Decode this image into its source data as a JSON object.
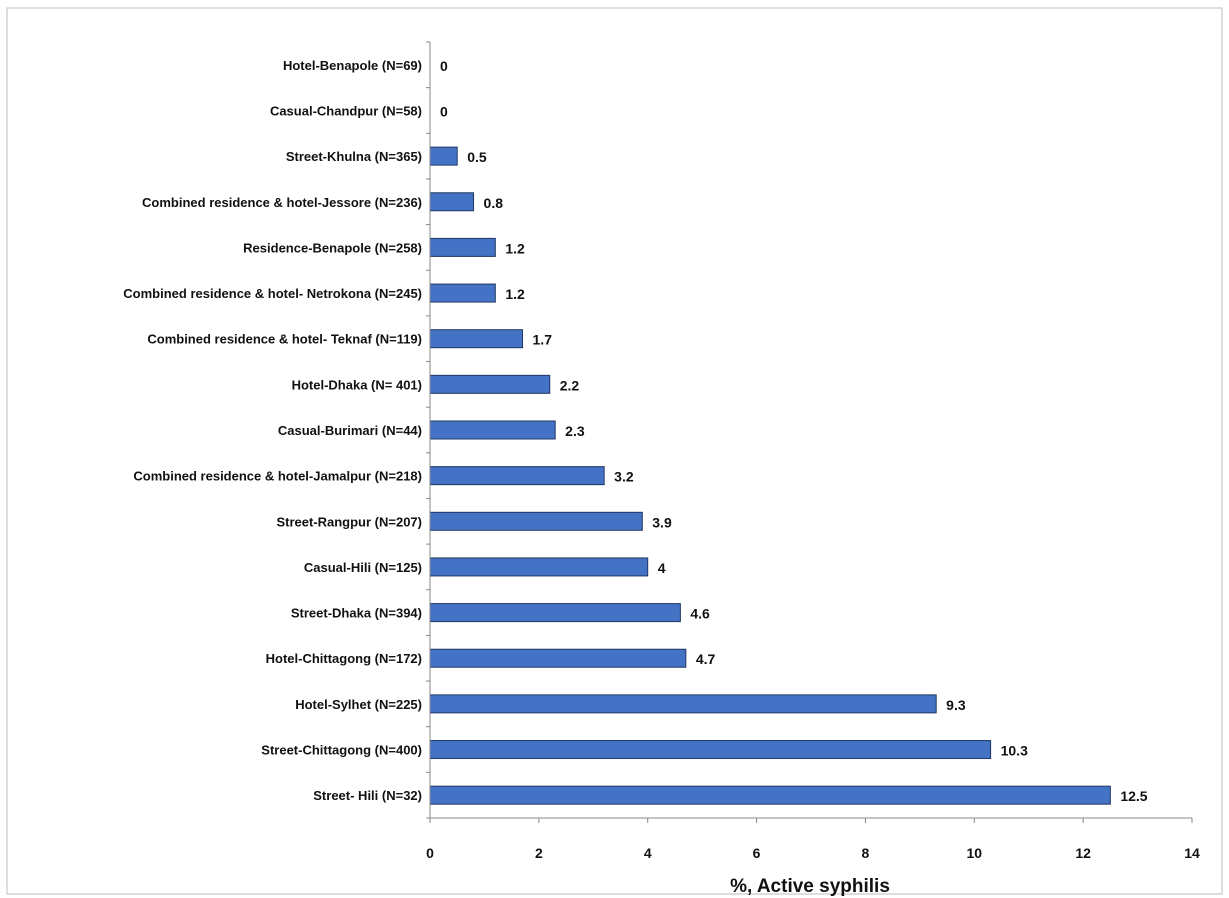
{
  "chart_data": {
    "type": "bar",
    "orientation": "horizontal",
    "xlabel": "%, Active syphilis",
    "xlim": [
      0,
      14
    ],
    "xticks": [
      0,
      2,
      4,
      6,
      8,
      10,
      12,
      14
    ],
    "grid": false,
    "legend": "none",
    "bar_color": "#4472C4",
    "bar_edge_color": "#1F3864",
    "categories": [
      "Hotel-Benapole (N=69)",
      "Casual-Chandpur (N=58)",
      "Street-Khulna (N=365)",
      "Combined residence & hotel-Jessore (N=236)",
      "Residence-Benapole (N=258)",
      "Combined residence & hotel- Netrokona (N=245)",
      "Combined residence & hotel- Teknaf (N=119)",
      "Hotel-Dhaka (N= 401)",
      "Casual-Burimari (N=44)",
      "Combined residence & hotel-Jamalpur (N=218)",
      "Street-Rangpur (N=207)",
      "Casual-Hili (N=125)",
      "Street-Dhaka (N=394)",
      "Hotel-Chittagong (N=172)",
      "Hotel-Sylhet (N=225)",
      "Street-Chittagong (N=400)",
      "Street- Hili (N=32)"
    ],
    "values": [
      0,
      0,
      0.5,
      0.8,
      1.2,
      1.2,
      1.7,
      2.2,
      2.3,
      3.2,
      3.9,
      4,
      4.6,
      4.7,
      9.3,
      10.3,
      12.5
    ],
    "value_labels": [
      "0",
      "0",
      "0.5",
      "0.8",
      "1.2",
      "1.2",
      "1.7",
      "2.2",
      "2.3",
      "3.2",
      "3.9",
      "4",
      "4.6",
      "4.7",
      "9.3",
      "10.3",
      "12.5"
    ]
  }
}
